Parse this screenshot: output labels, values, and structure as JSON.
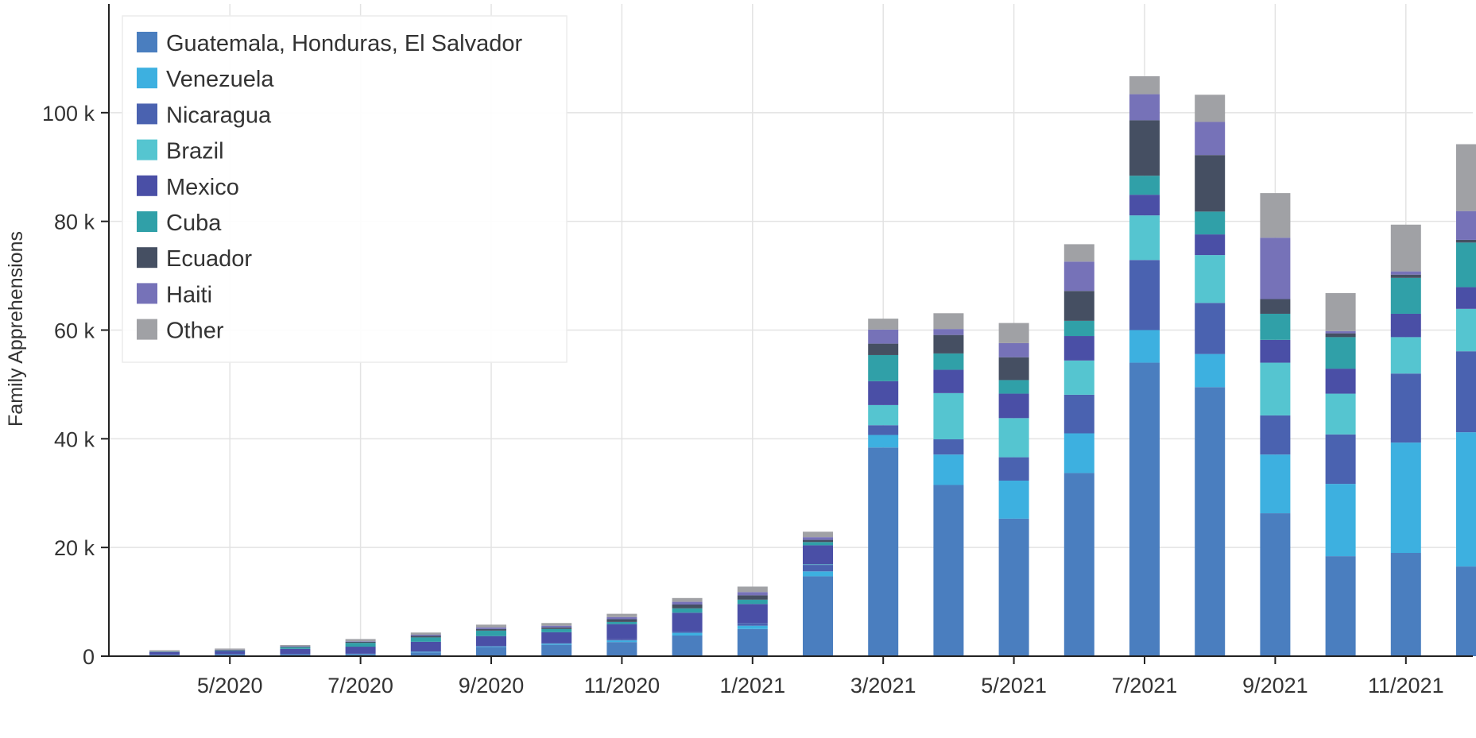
{
  "chart_data": {
    "type": "bar",
    "stacked": true,
    "ylabel": "Family Apprehensions",
    "ylim": [
      0,
      120000
    ],
    "yticks": [
      0,
      20000,
      40000,
      60000,
      80000,
      100000
    ],
    "ytick_labels": [
      "0",
      "20 k",
      "40 k",
      "60 k",
      "80 k",
      "100 k"
    ],
    "categories": [
      "4/2020",
      "5/2020",
      "6/2020",
      "7/2020",
      "8/2020",
      "9/2020",
      "10/2020",
      "11/2020",
      "12/2020",
      "1/2021",
      "2/2021",
      "3/2021",
      "4/2021",
      "5/2021",
      "6/2021",
      "7/2021",
      "8/2021",
      "9/2021",
      "10/2021",
      "11/2021",
      "12/2021"
    ],
    "xtick_labels": [
      "",
      "5/2020",
      "",
      "7/2020",
      "",
      "9/2020",
      "",
      "11/2020",
      "",
      "1/2021",
      "",
      "3/2021",
      "",
      "5/2021",
      "",
      "7/2021",
      "",
      "9/2021",
      "",
      "11/2021",
      ""
    ],
    "grid": true,
    "legend_position": "top-left",
    "series": [
      {
        "name": "Guatemala, Honduras, El Salvador",
        "color": "#4a7ebf",
        "values": [
          200,
          300,
          300,
          400,
          700,
          1700,
          2100,
          2600,
          3800,
          5000,
          14700,
          38400,
          31500,
          25300,
          33700,
          54000,
          49500,
          26300,
          18400,
          19000,
          16500
        ]
      },
      {
        "name": "Venezuela",
        "color": "#3db0e0",
        "values": [
          50,
          50,
          50,
          50,
          100,
          100,
          200,
          300,
          500,
          600,
          900,
          2300,
          5600,
          7000,
          7300,
          6000,
          6100,
          10800,
          13300,
          20300,
          24700
        ]
      },
      {
        "name": "Nicaragua",
        "color": "#4a62b0",
        "values": [
          0,
          0,
          0,
          0,
          50,
          100,
          100,
          200,
          300,
          500,
          1200,
          1800,
          2800,
          4300,
          7100,
          12900,
          9400,
          7200,
          9100,
          12700,
          14900
        ]
      },
      {
        "name": "Brazil",
        "color": "#55c5d0",
        "values": [
          0,
          0,
          0,
          0,
          0,
          0,
          0,
          0,
          0,
          0,
          100,
          3700,
          8500,
          7200,
          6300,
          8200,
          8800,
          9700,
          7500,
          6700,
          7800
        ]
      },
      {
        "name": "Mexico",
        "color": "#4a4fa6",
        "values": [
          500,
          600,
          1000,
          1300,
          1800,
          1800,
          2000,
          2800,
          3400,
          3500,
          3500,
          4400,
          4300,
          4500,
          4500,
          3800,
          3800,
          4200,
          4600,
          4300,
          4000
        ]
      },
      {
        "name": "Cuba",
        "color": "#30a0a8",
        "values": [
          50,
          100,
          300,
          700,
          800,
          1000,
          600,
          400,
          800,
          800,
          600,
          4800,
          3000,
          2500,
          2800,
          3500,
          4200,
          4800,
          5800,
          6600,
          8200
        ]
      },
      {
        "name": "Ecuador",
        "color": "#454f62",
        "values": [
          50,
          100,
          100,
          200,
          300,
          300,
          300,
          500,
          700,
          800,
          400,
          2100,
          3400,
          4200,
          5500,
          10200,
          10400,
          2700,
          700,
          600,
          500
        ]
      },
      {
        "name": "Haiti",
        "color": "#7672b8",
        "values": [
          50,
          50,
          100,
          100,
          200,
          300,
          300,
          400,
          500,
          600,
          500,
          2600,
          1100,
          2600,
          5400,
          4800,
          6100,
          11300,
          400,
          600,
          5300
        ]
      },
      {
        "name": "Other",
        "color": "#a0a1a5",
        "values": [
          200,
          200,
          200,
          400,
          400,
          500,
          500,
          600,
          700,
          1000,
          1000,
          2000,
          2900,
          3700,
          3200,
          3300,
          5000,
          8200,
          7000,
          8600,
          12300
        ]
      }
    ]
  }
}
